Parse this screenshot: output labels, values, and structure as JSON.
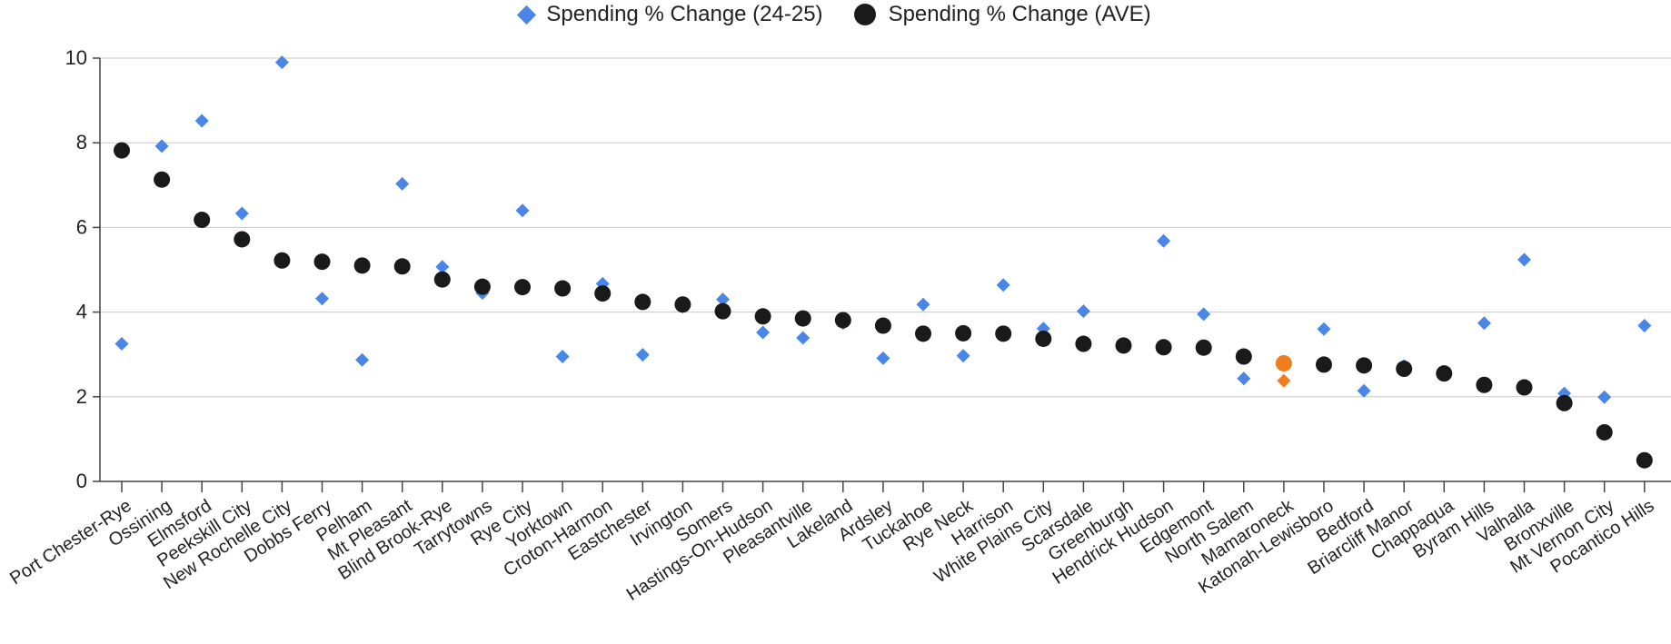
{
  "legend": {
    "series_a": "Spending % Change (24-25)",
    "series_b": "Spending % Change (AVE)"
  },
  "colors": {
    "series_a": "#4a86e8",
    "series_b": "#1a1a1a",
    "highlight": "#f07c1e",
    "grid": "#c8c8c8"
  },
  "chart_data": {
    "type": "scatter",
    "title": "",
    "xlabel": "",
    "ylabel": "",
    "ylim": [
      0,
      10
    ],
    "yticks": [
      0,
      2,
      4,
      6,
      8,
      10
    ],
    "grid": "horizontal",
    "legend_position": "top-center",
    "highlight_category": "Mamaroneck",
    "categories": [
      "Port Chester-Rye",
      "Ossining",
      "Elmsford",
      "Peekskill City",
      "New Rochelle City",
      "Dobbs Ferry",
      "Pelham",
      "Mt Pleasant",
      "Blind Brook-Rye",
      "Tarrytowns",
      "Rye City",
      "Yorktown",
      "Croton-Harmon",
      "Eastchester",
      "Irvington",
      "Somers",
      "Hastings-On-Hudson",
      "Pleasantville",
      "Lakeland",
      "Ardsley",
      "Tuckahoe",
      "Rye Neck",
      "Harrison",
      "White Plains City",
      "Scarsdale",
      "Greenburgh",
      "Hendrick Hudson",
      "Edgemont",
      "North Salem",
      "Mamaroneck",
      "Katonah-Lewisboro",
      "Bedford",
      "Briarcliff Manor",
      "Chappaqua",
      "Byram Hills",
      "Valhalla",
      "Bronxville",
      "Mt Vernon City",
      "Pocantico Hills"
    ],
    "series": [
      {
        "name": "Spending % Change (24-25)",
        "marker": "diamond",
        "values": [
          3.25,
          7.92,
          8.52,
          6.33,
          9.9,
          4.32,
          2.87,
          7.03,
          5.07,
          4.45,
          6.4,
          2.95,
          4.67,
          2.99,
          4.13,
          4.3,
          3.52,
          3.39,
          3.74,
          2.91,
          4.18,
          2.97,
          4.64,
          3.61,
          4.02,
          3.24,
          5.68,
          3.95,
          2.43,
          2.38,
          3.6,
          2.14,
          2.73,
          2.58,
          3.74,
          5.24,
          2.08,
          1.99,
          3.68
        ]
      },
      {
        "name": "Spending % Change (AVE)",
        "marker": "circle",
        "values": [
          7.82,
          7.13,
          6.18,
          5.72,
          5.22,
          5.19,
          5.1,
          5.08,
          4.77,
          4.6,
          4.59,
          4.56,
          4.44,
          4.24,
          4.18,
          4.02,
          3.9,
          3.85,
          3.81,
          3.68,
          3.49,
          3.5,
          3.49,
          3.37,
          3.25,
          3.21,
          3.17,
          3.16,
          2.95,
          2.79,
          2.76,
          2.74,
          2.66,
          2.55,
          2.28,
          2.22,
          1.85,
          1.16,
          0.5
        ]
      }
    ]
  }
}
